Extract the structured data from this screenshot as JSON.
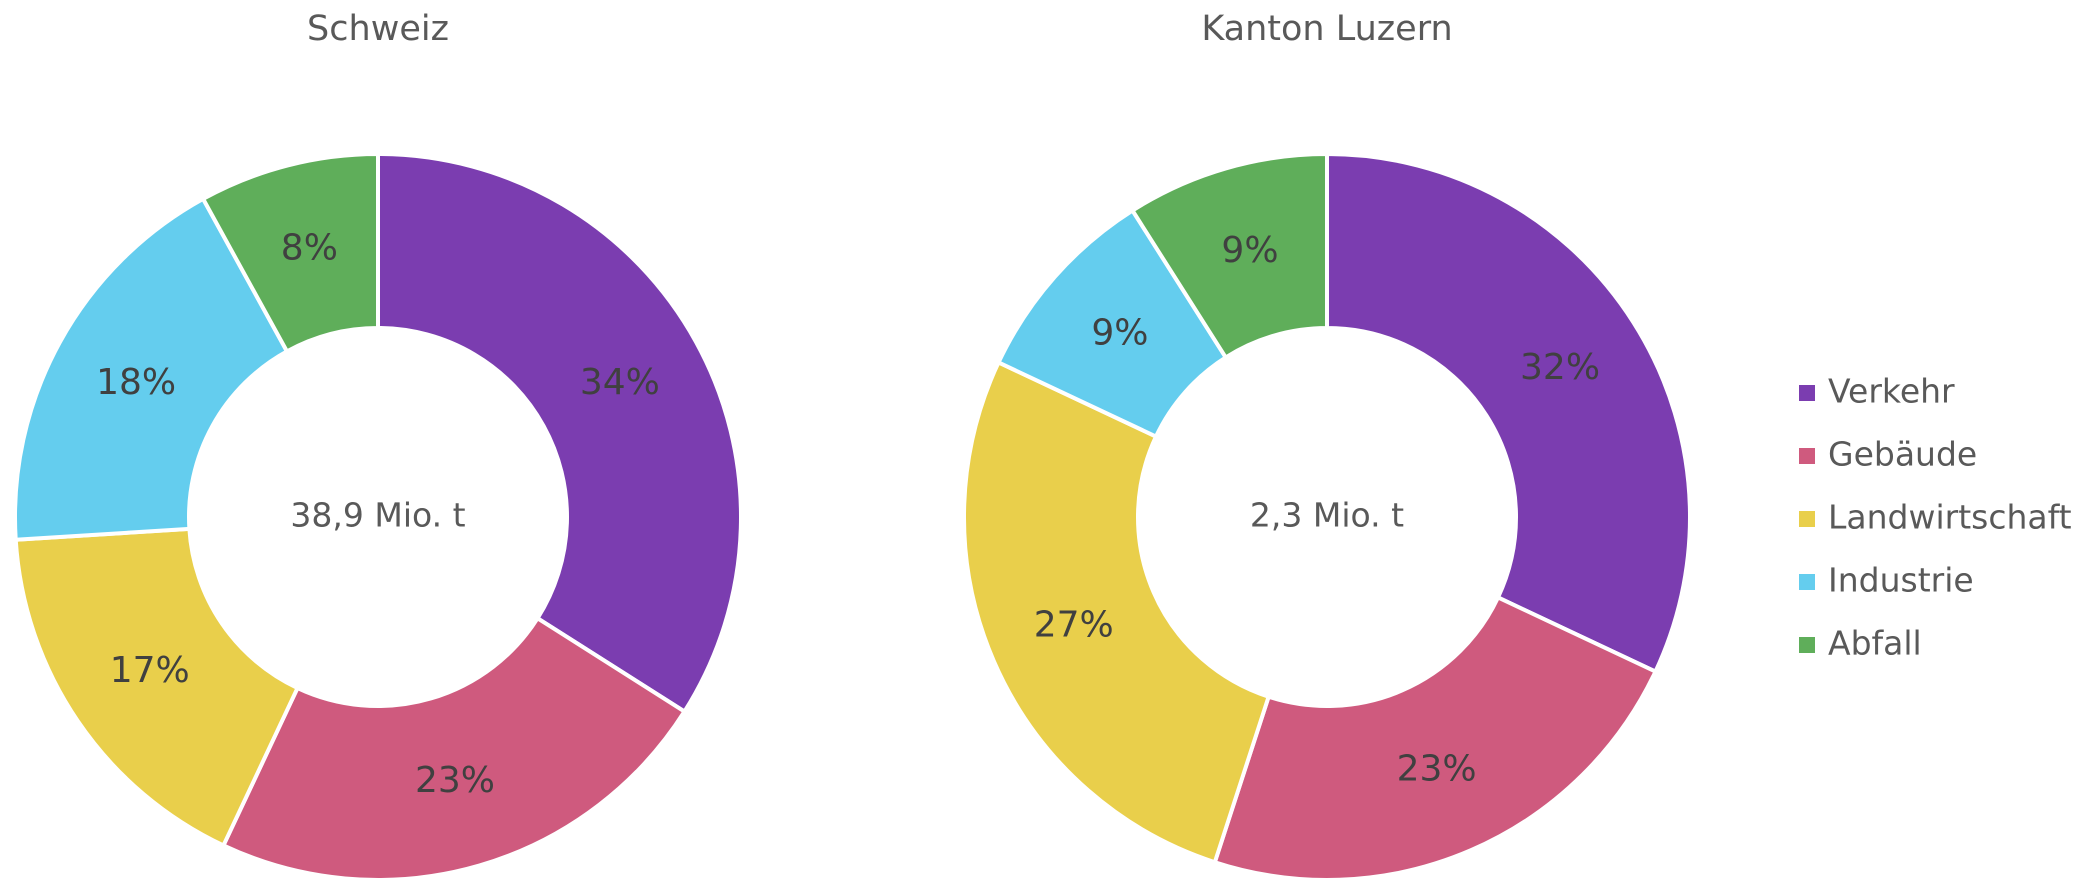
{
  "chart_data": [
    {
      "type": "donut",
      "title": "Schweiz",
      "center_label": "38,9 Mio. t",
      "values": [
        34,
        23,
        17,
        18,
        8
      ],
      "value_labels": [
        "34%",
        "23%",
        "17%",
        "18%",
        "8%"
      ]
    },
    {
      "type": "donut",
      "title": "Kanton Luzern",
      "center_label": "2,3 Mio. t",
      "values": [
        32,
        23,
        27,
        9,
        9
      ],
      "value_labels": [
        "32%",
        "23%",
        "27%",
        "9%",
        "9%"
      ]
    }
  ],
  "legend": {
    "labels": [
      "Verkehr",
      "Gebäude",
      "Landwirtschaft",
      "Industrie",
      "Abfall"
    ],
    "colors": [
      "#7b3db0",
      "#cf5a7e",
      "#e9cf4b",
      "#64cdee",
      "#5fae5a"
    ]
  }
}
